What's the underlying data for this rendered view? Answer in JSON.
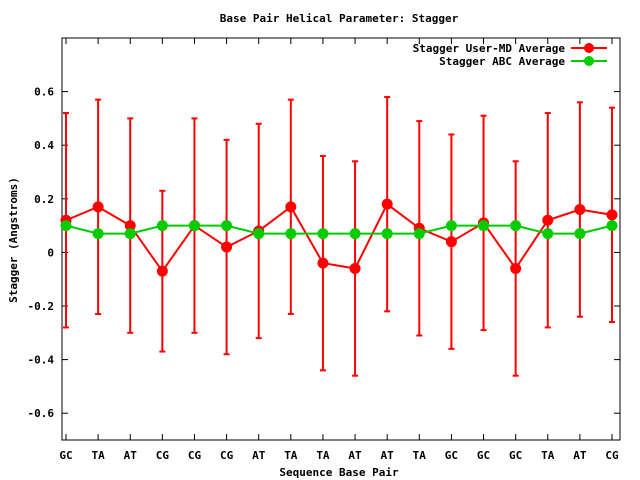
{
  "chart_data": {
    "type": "line",
    "title": "Base Pair Helical Parameter: Stagger",
    "xlabel": "Sequence Base Pair",
    "ylabel": "Stagger (Angstroms)",
    "categories": [
      "GC",
      "TA",
      "AT",
      "CG",
      "CG",
      "CG",
      "AT",
      "TA",
      "TA",
      "AT",
      "AT",
      "TA",
      "GC",
      "GC",
      "GC",
      "TA",
      "AT",
      "CG"
    ],
    "ylim": [
      -0.7,
      0.8
    ],
    "yticks": [
      -0.6,
      -0.4,
      -0.2,
      0,
      0.2,
      0.4,
      0.6
    ],
    "ytick_labels": [
      "-0.6",
      "-0.4",
      "-0.2",
      "0",
      "0.2",
      "0.4",
      "0.6"
    ],
    "grid": false,
    "legend_position": "top-right",
    "series": [
      {
        "name": "Stagger User-MD Average",
        "color": "#ff0000",
        "values": [
          0.12,
          0.17,
          0.1,
          -0.07,
          0.1,
          0.02,
          0.08,
          0.17,
          -0.04,
          -0.06,
          0.18,
          0.09,
          0.04,
          0.11,
          -0.06,
          0.12,
          0.16,
          0.14
        ],
        "err_low": [
          -0.28,
          -0.23,
          -0.3,
          -0.37,
          -0.3,
          -0.38,
          -0.32,
          -0.23,
          -0.44,
          -0.46,
          -0.22,
          -0.31,
          -0.36,
          -0.29,
          -0.46,
          -0.28,
          -0.24,
          -0.26
        ],
        "err_high": [
          0.52,
          0.57,
          0.5,
          0.23,
          0.5,
          0.42,
          0.48,
          0.57,
          0.36,
          0.34,
          0.58,
          0.49,
          0.44,
          0.51,
          0.34,
          0.52,
          0.56,
          0.54
        ]
      },
      {
        "name": "Stagger ABC Average",
        "color": "#00cc00",
        "values": [
          0.1,
          0.07,
          0.07,
          0.1,
          0.1,
          0.1,
          0.07,
          0.07,
          0.07,
          0.07,
          0.07,
          0.07,
          0.1,
          0.1,
          0.1,
          0.07,
          0.07,
          0.1
        ]
      }
    ]
  }
}
